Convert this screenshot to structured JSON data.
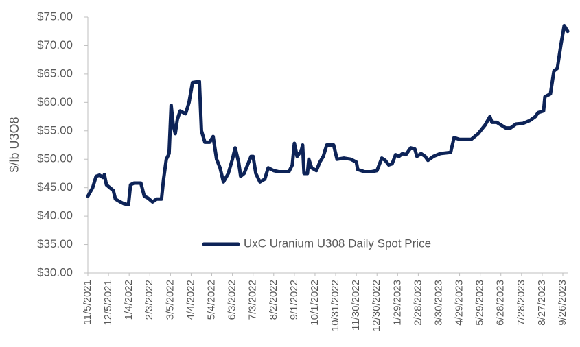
{
  "chart_data": {
    "type": "line",
    "y_label": "$/lb U3O8",
    "legend_position": "center",
    "x": [
      "11/5/2021",
      "11/12/2021",
      "11/17/2021",
      "11/22/2021",
      "11/27/2021",
      "11/29/2021",
      "12/2/2021",
      "12/7/2021",
      "12/12/2021",
      "12/15/2021",
      "12/22/2021",
      "12/27/2021",
      "1/3/2022",
      "1/6/2022",
      "1/11/2022",
      "1/21/2022",
      "1/26/2022",
      "1/31/2022",
      "2/7/2022",
      "2/13/2022",
      "2/20/2022",
      "2/23/2022",
      "2/27/2022",
      "3/3/2022",
      "3/6/2022",
      "3/9/2022",
      "3/12/2022",
      "3/15/2022",
      "3/19/2022",
      "3/27/2022",
      "4/1/2022",
      "4/6/2022",
      "4/16/2022",
      "4/19/2022",
      "4/24/2022",
      "5/1/2022",
      "5/6/2022",
      "5/11/2022",
      "5/16/2022",
      "5/21/2022",
      "5/28/2022",
      "6/3/2022",
      "6/7/2022",
      "6/12/2022",
      "6/15/2022",
      "6/20/2022",
      "6/25/2022",
      "6/30/2022",
      "7/3/2022",
      "7/7/2022",
      "7/13/2022",
      "7/20/2022",
      "7/25/2022",
      "8/2/2022",
      "8/9/2022",
      "8/24/2022",
      "8/29/2022",
      "9/1/2022",
      "9/5/2022",
      "9/11/2022",
      "9/13/2022",
      "9/15/2022",
      "9/20/2022",
      "9/22/2022",
      "9/26/2022",
      "10/3/2022",
      "10/8/2022",
      "10/13/2022",
      "10/18/2022",
      "10/28/2022",
      "11/2/2022",
      "11/12/2022",
      "11/22/2022",
      "11/30/2022",
      "12/2/2022",
      "12/12/2022",
      "12/22/2022",
      "12/30/2022",
      "1/6/2023",
      "1/11/2023",
      "1/16/2023",
      "1/21/2023",
      "1/26/2023",
      "1/31/2023",
      "2/5/2023",
      "2/10/2023",
      "2/17/2023",
      "2/23/2023",
      "2/26/2023",
      "3/4/2023",
      "3/10/2023",
      "3/14/2023",
      "3/22/2023",
      "4/1/2023",
      "4/16/2023",
      "4/21/2023",
      "4/29/2023",
      "5/16/2023",
      "5/26/2023",
      "6/5/2023",
      "6/12/2023",
      "6/15/2023",
      "6/22/2023",
      "7/5/2023",
      "7/12/2023",
      "7/20/2023",
      "7/30/2023",
      "8/9/2023",
      "8/17/2023",
      "8/21/2023",
      "8/29/2023",
      "8/31/2023",
      "9/8/2023",
      "9/13/2023",
      "9/18/2023",
      "9/23/2023",
      "9/28/2023",
      "10/3/2023"
    ],
    "series": [
      {
        "name": "UxC Uranium U308 Daily Spot Price",
        "color": "#0d2357",
        "values": [
          43.5,
          45,
          47,
          47.2,
          46.8,
          47.3,
          45.5,
          45,
          44.5,
          43,
          42.5,
          42.2,
          42,
          45.5,
          45.8,
          45.8,
          43.5,
          43.2,
          42.5,
          43,
          43,
          46.5,
          50,
          51,
          59.5,
          56,
          54.5,
          57,
          58.5,
          58,
          60,
          63.5,
          63.7,
          55,
          53,
          53,
          54,
          50,
          48.5,
          46,
          47.5,
          50,
          52,
          49.5,
          47,
          47.5,
          49,
          50.5,
          50.5,
          47.5,
          46,
          46.5,
          48.5,
          48,
          47.8,
          47.8,
          49,
          52.8,
          50.5,
          51.5,
          52.5,
          47.5,
          47.5,
          50,
          48.5,
          48,
          49.5,
          50.5,
          52.5,
          52.5,
          50,
          50.2,
          50,
          49.5,
          48.2,
          47.8,
          47.8,
          48,
          50.2,
          49.8,
          49,
          49.2,
          50.8,
          50.5,
          51,
          50.8,
          52,
          51.8,
          50.5,
          51,
          50.5,
          49.8,
          50.5,
          51,
          51.2,
          53.8,
          53.5,
          53.5,
          54.5,
          56,
          57.5,
          56.5,
          56.5,
          55.5,
          55.5,
          56.2,
          56.3,
          56.8,
          57.5,
          58.2,
          58.5,
          61,
          61.5,
          65.5,
          66,
          70,
          73.5,
          72.5
        ]
      }
    ],
    "xlim": [
      "11/5/2021",
      "10/3/2023"
    ],
    "xticks": [
      "11/5/2021",
      "12/5/2021",
      "1/4/2022",
      "2/3/2022",
      "3/5/2022",
      "4/4/2022",
      "5/4/2022",
      "6/3/2022",
      "7/3/2022",
      "8/2/2022",
      "9/1/2022",
      "10/1/2022",
      "10/31/2022",
      "11/30/2022",
      "12/30/2022",
      "1/29/2023",
      "2/28/2023",
      "3/30/2023",
      "4/29/2023",
      "5/29/2023",
      "6/28/2023",
      "7/28/2023",
      "8/27/2023",
      "9/26/2023"
    ],
    "ylim": [
      30,
      75
    ],
    "yticks": [
      {
        "value": 30,
        "label": "$30.00"
      },
      {
        "value": 35,
        "label": "$35.00"
      },
      {
        "value": 40,
        "label": "$40.00"
      },
      {
        "value": 45,
        "label": "$45.00"
      },
      {
        "value": 50,
        "label": "$50.00"
      },
      {
        "value": 55,
        "label": "$55.00"
      },
      {
        "value": 60,
        "label": "$60.00"
      },
      {
        "value": 65,
        "label": "$65.00"
      },
      {
        "value": 70,
        "label": "$70.00"
      },
      {
        "value": 75,
        "label": "$75.00"
      }
    ],
    "grid": false
  }
}
